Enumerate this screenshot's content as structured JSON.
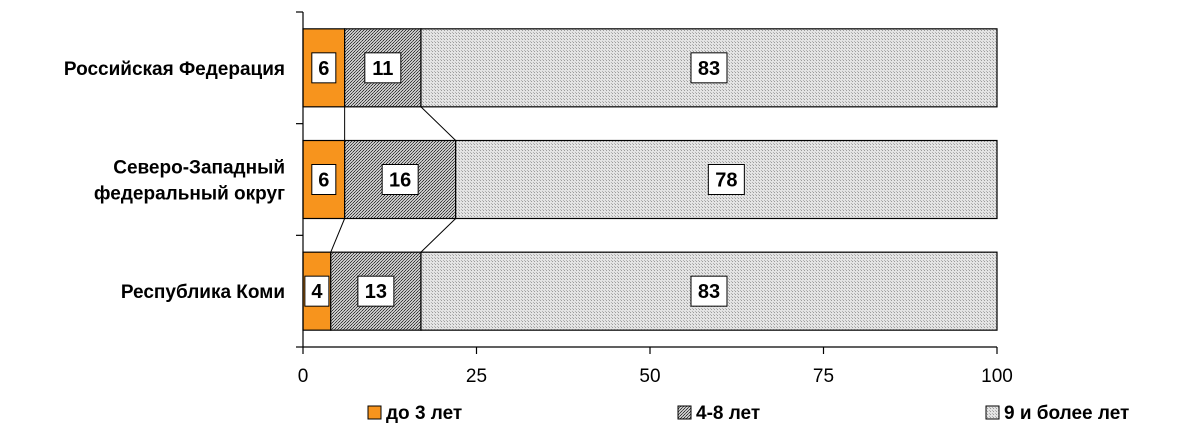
{
  "chart_data": {
    "type": "bar",
    "orientation": "horizontal",
    "stacked": true,
    "categories": [
      "Российская Федерация",
      "Северо-Западный федеральный округ",
      "Республика Коми"
    ],
    "category_lines": [
      [
        "Российская Федерация"
      ],
      [
        "Северо-Западный",
        "федеральный округ"
      ],
      [
        "Республика Коми"
      ]
    ],
    "series": [
      {
        "name": "до 3 лет",
        "values": [
          6,
          6,
          4
        ],
        "color": "#f7941d",
        "pattern": "solid"
      },
      {
        "name": "4-8 лет",
        "values": [
          11,
          16,
          13
        ],
        "color": "#9a9a9a",
        "pattern": "dense-hatch"
      },
      {
        "name": "9 и более лет",
        "values": [
          83,
          78,
          83
        ],
        "color": "#d2d2d2",
        "pattern": "light-dots"
      }
    ],
    "xlim": [
      0,
      100
    ],
    "xticks": [
      0,
      25,
      50,
      75,
      100
    ],
    "xtick_labels": [
      "0",
      "25",
      "50",
      "75",
      "100"
    ],
    "title": "",
    "xlabel": "",
    "ylabel": "",
    "grid": false,
    "legend_position": "bottom",
    "series_connector_lines": true
  }
}
